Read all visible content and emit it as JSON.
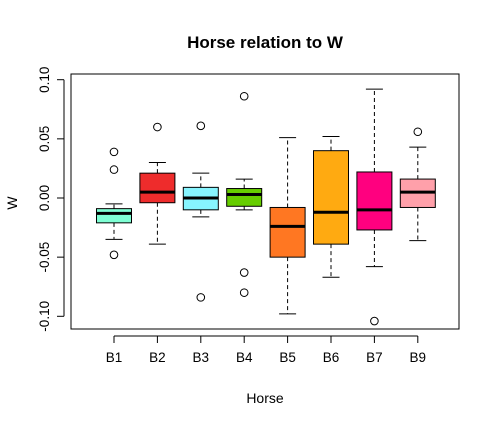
{
  "chart_data": {
    "type": "boxplot",
    "title": "Horse relation to W",
    "xlabel": "Horse",
    "ylabel": "W",
    "ylim": [
      -0.11,
      0.1
    ],
    "yticks": [
      "-0.10",
      "-0.05",
      "0.00",
      "0.05",
      "0.10"
    ],
    "yticks_values": [
      -0.1,
      -0.05,
      0.0,
      0.05,
      0.1
    ],
    "grid": false,
    "legend": "none",
    "categories": [
      "B1",
      "B2",
      "B3",
      "B4",
      "B5",
      "B6",
      "B7",
      "B9"
    ],
    "boxes": [
      {
        "category": "B1",
        "color": "#7FFFD4",
        "whisker_low": -0.035,
        "q1": -0.021,
        "median": -0.013,
        "q3": -0.009,
        "whisker_high": -0.005,
        "outliers": [
          0.039,
          0.024,
          -0.048
        ]
      },
      {
        "category": "B2",
        "color": "#EE2C2C",
        "whisker_low": -0.039,
        "q1": -0.004,
        "median": 0.005,
        "q3": 0.021,
        "whisker_high": 0.03,
        "outliers": [
          0.06
        ]
      },
      {
        "category": "B3",
        "color": "#87F5FF",
        "whisker_low": -0.016,
        "q1": -0.01,
        "median": 0.0,
        "q3": 0.009,
        "whisker_high": 0.021,
        "outliers": [
          0.061,
          -0.084
        ]
      },
      {
        "category": "B4",
        "color": "#66CD00",
        "whisker_low": -0.01,
        "q1": -0.007,
        "median": 0.003,
        "q3": 0.008,
        "whisker_high": 0.016,
        "outliers": [
          0.086,
          -0.063,
          -0.08
        ]
      },
      {
        "category": "B5",
        "color": "#FF7722",
        "whisker_low": -0.098,
        "q1": -0.05,
        "median": -0.024,
        "q3": -0.008,
        "whisker_high": 0.051,
        "outliers": []
      },
      {
        "category": "B6",
        "color": "#FFAA11",
        "whisker_low": -0.067,
        "q1": -0.039,
        "median": -0.012,
        "q3": 0.04,
        "whisker_high": 0.052,
        "outliers": []
      },
      {
        "category": "B7",
        "color": "#FF007F",
        "whisker_low": -0.058,
        "q1": -0.027,
        "median": -0.01,
        "q3": 0.022,
        "whisker_high": 0.092,
        "outliers": [
          -0.104
        ]
      },
      {
        "category": "B9",
        "color": "#FFA0AA",
        "whisker_low": -0.036,
        "q1": -0.008,
        "median": 0.005,
        "q3": 0.016,
        "whisker_high": 0.043,
        "outliers": [
          0.056
        ]
      }
    ]
  }
}
